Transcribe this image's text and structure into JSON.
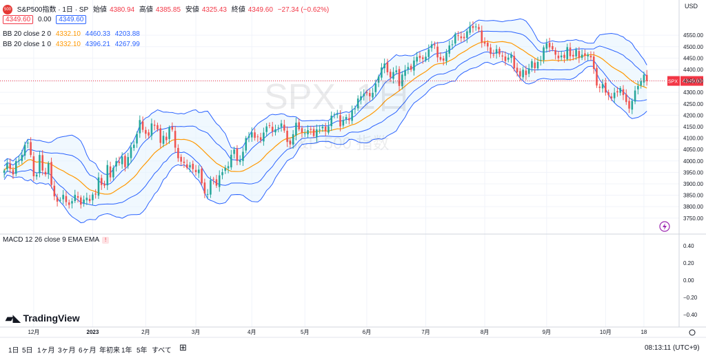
{
  "symbol": {
    "title": "S&P500指数 · 1日 · SP",
    "badge": "500",
    "open_label": "始値",
    "open": "4380.94",
    "high_label": "高値",
    "high": "4385.85",
    "low_label": "安値",
    "low": "4325.43",
    "close_label": "終値",
    "close": "4349.60",
    "change": "−27.34 (−0.62%)"
  },
  "row2": {
    "sell": "4349.60",
    "spread": "0.00",
    "buy": "4349.60"
  },
  "bb2": {
    "label": "BB 20 close 2 0",
    "basis": "4332.10",
    "upper": "4460.33",
    "lower": "4203.88"
  },
  "bb1": {
    "label": "BB 20 close 1 0",
    "basis": "4332.10",
    "upper": "4396.21",
    "lower": "4267.99"
  },
  "macd_label": "MACD 12 26 close 9 EMA EMA",
  "macd_chip": "!",
  "watermark": "SPX, 1日",
  "watermark_sub": "S&P 500 指数",
  "price_tag": {
    "symbol": "SPX",
    "value": "4349.60"
  },
  "currency": "USD",
  "logo": "TradingView",
  "bottom": {
    "ranges": [
      "1日",
      "5日",
      "1ヶ月",
      "3ヶ月",
      "6ヶ月",
      "年初来",
      "1年",
      "5年",
      "すべて"
    ],
    "time": "08:13:11 (UTC+9)"
  },
  "colors": {
    "up": "#26a69a",
    "down": "#ef5350",
    "basis": "#ff9800",
    "band": "#2962ff",
    "fill": "#e3f2fd"
  },
  "chart_data": {
    "type": "line",
    "title": "",
    "xlabel": "",
    "ylabel": "",
    "ylim": [
      3700,
      4650
    ],
    "x_ticks": [
      "12月",
      "2023",
      "2月",
      "3月",
      "4月",
      "5月",
      "6月",
      "7月",
      "8月",
      "9月",
      "10月",
      "18"
    ],
    "y_ticks": [
      3750,
      3800,
      3850,
      3900,
      3950,
      4000,
      4050,
      4100,
      4150,
      4200,
      4250,
      4300,
      4350,
      4400,
      4450,
      4500,
      4550
    ],
    "x_tick_index": [
      10,
      30,
      48,
      65,
      84,
      102,
      123,
      143,
      163,
      184,
      204,
      217
    ],
    "close": [
      3958,
      3990,
      3965,
      3941,
      3999,
      4004,
      4027,
      4071,
      4080,
      4026,
      3933,
      3940,
      4026,
      3958,
      3941,
      3990,
      3895,
      3845,
      3822,
      3829,
      3852,
      3820,
      3808,
      3824,
      3852,
      3839,
      3809,
      3831,
      3839,
      3824,
      3853,
      3853,
      3928,
      3895,
      3892,
      3982,
      3928,
      3970,
      3999,
      3991,
      4019,
      3973,
      4017,
      4060,
      4071,
      4119,
      4179,
      4136,
      4119,
      4111,
      4164,
      4154,
      4138,
      4079,
      4110,
      4091,
      4147,
      4137,
      4058,
      4012,
      3997,
      3991,
      3970,
      3982,
      3964,
      3951,
      3962,
      3902,
      3858,
      3855,
      3916,
      3919,
      3892,
      3937,
      3951,
      3970,
      3977,
      4027,
      4050,
      4000,
      4003,
      4040,
      4100,
      4109,
      4125,
      4101,
      4105,
      4091,
      4124,
      4151,
      4154,
      4129,
      4138,
      4146,
      4164,
      4133,
      4083,
      4072,
      4117,
      4167,
      4138,
      4124,
      4121,
      4135,
      4136,
      4109,
      4138,
      4137,
      4150,
      4130,
      4151,
      4198,
      4204,
      4205,
      4151,
      4179,
      4192,
      4178,
      4221,
      4229,
      4273,
      4283,
      4294,
      4299,
      4283,
      4298,
      4338,
      4369,
      4409,
      4426,
      4388,
      4365,
      4389,
      4396,
      4328,
      4378,
      4398,
      4411,
      4399,
      4439,
      4455,
      4450,
      4446,
      4456,
      4488,
      4510,
      4506,
      4453,
      4443,
      4439,
      4474,
      4505,
      4510,
      4555,
      4547,
      4537,
      4537,
      4567,
      4589,
      4582,
      4588,
      4576,
      4517,
      4513,
      4501,
      4468,
      4464,
      4489,
      4467,
      4457,
      4437,
      4452,
      4465,
      4405,
      4388,
      4370,
      4399,
      4376,
      4405,
      4436,
      4406,
      4433,
      4442,
      4497,
      4515,
      4497,
      4488,
      4465,
      4449,
      4461,
      4451,
      4498,
      4458,
      4457,
      4487,
      4450,
      4465,
      4460,
      4465,
      4453,
      4403,
      4330,
      4320,
      4337,
      4299,
      4288,
      4274,
      4299,
      4300,
      4319,
      4288,
      4258,
      4229,
      4263,
      4308,
      4328,
      4349,
      4377,
      4350
    ]
  }
}
